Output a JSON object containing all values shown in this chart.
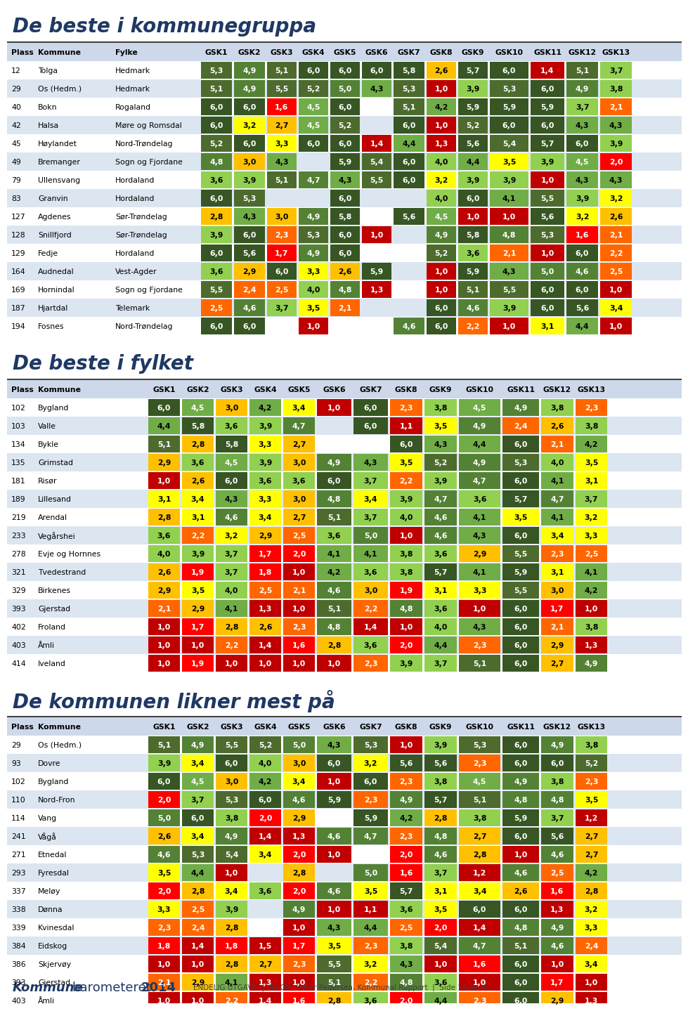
{
  "title1": "De beste i kommunegruppa",
  "title2": "De beste i fylket",
  "title3": "De kommunen likner mest på",
  "footer_right": "ENDELIG UTGAVE  |  Av Ole Petter Pedersen, Kommunal Rapport  |  Side 14 av 82",
  "table1": [
    [
      "12",
      "Tolga",
      "Hedmark",
      "5,3",
      "4,9",
      "5,1",
      "6,0",
      "6,0",
      "6,0",
      "5,8",
      "2,6",
      "5,7",
      "6,0",
      "1,4",
      "5,1",
      "3,7"
    ],
    [
      "29",
      "Os (Hedm.)",
      "Hedmark",
      "5,1",
      "4,9",
      "5,5",
      "5,2",
      "5,0",
      "4,3",
      "5,3",
      "1,0",
      "3,9",
      "5,3",
      "6,0",
      "4,9",
      "3,8"
    ],
    [
      "40",
      "Bokn",
      "Rogaland",
      "6,0",
      "6,0",
      "1,6",
      "4,5",
      "6,0",
      "",
      "5,1",
      "4,2",
      "5,9",
      "5,9",
      "5,9",
      "3,7",
      "2,1"
    ],
    [
      "42",
      "Halsa",
      "Møre og Romsdal",
      "6,0",
      "3,2",
      "2,7",
      "4,5",
      "5,2",
      "",
      "6,0",
      "1,0",
      "5,2",
      "6,0",
      "6,0",
      "4,3",
      "4,3"
    ],
    [
      "45",
      "Høylandet",
      "Nord-Trøndelag",
      "5,2",
      "6,0",
      "3,3",
      "6,0",
      "6,0",
      "1,4",
      "4,4",
      "1,3",
      "5,6",
      "5,4",
      "5,7",
      "6,0",
      "3,9"
    ],
    [
      "49",
      "Bremanger",
      "Sogn og Fjordane",
      "4,8",
      "3,0",
      "4,3",
      "",
      "5,9",
      "5,4",
      "6,0",
      "4,0",
      "4,4",
      "3,5",
      "3,9",
      "4,5",
      "2,0"
    ],
    [
      "79",
      "Ullensvang",
      "Hordaland",
      "3,6",
      "3,9",
      "5,1",
      "4,7",
      "4,3",
      "5,5",
      "6,0",
      "3,2",
      "3,9",
      "3,9",
      "1,0",
      "4,3",
      "4,3"
    ],
    [
      "83",
      "Granvin",
      "Hordaland",
      "6,0",
      "5,3",
      "",
      "",
      "6,0",
      "",
      "",
      "4,0",
      "6,0",
      "4,1",
      "5,5",
      "3,9",
      "3,2"
    ],
    [
      "127",
      "Agdenes",
      "Sør-Trøndelag",
      "2,8",
      "4,3",
      "3,0",
      "4,9",
      "5,8",
      "",
      "5,6",
      "4,5",
      "1,0",
      "1,0",
      "5,6",
      "3,2",
      "2,6"
    ],
    [
      "128",
      "Snillfjord",
      "Sør-Trøndelag",
      "3,9",
      "6,0",
      "2,3",
      "5,3",
      "6,0",
      "1,0",
      "",
      "4,9",
      "5,8",
      "4,8",
      "5,3",
      "1,6",
      "2,1"
    ],
    [
      "129",
      "Fedje",
      "Hordaland",
      "6,0",
      "5,6",
      "1,7",
      "4,9",
      "6,0",
      "",
      "",
      "5,2",
      "3,6",
      "2,1",
      "1,0",
      "6,0",
      "2,2"
    ],
    [
      "164",
      "Audnedal",
      "Vest-Agder",
      "3,6",
      "2,9",
      "6,0",
      "3,3",
      "2,6",
      "5,9",
      "",
      "1,0",
      "5,9",
      "4,3",
      "5,0",
      "4,6",
      "2,5"
    ],
    [
      "169",
      "Hornindal",
      "Sogn og Fjordane",
      "5,5",
      "2,4",
      "2,5",
      "4,0",
      "4,8",
      "1,3",
      "",
      "1,0",
      "5,1",
      "5,5",
      "6,0",
      "6,0",
      "1,0"
    ],
    [
      "187",
      "Hjartdal",
      "Telemark",
      "2,5",
      "4,6",
      "3,7",
      "3,5",
      "2,1",
      "",
      "",
      "6,0",
      "4,6",
      "3,9",
      "6,0",
      "5,6",
      "3,4"
    ],
    [
      "194",
      "Fosnes",
      "Nord-Trøndelag",
      "6,0",
      "6,0",
      "",
      "1,0",
      "",
      "",
      "4,6",
      "6,0",
      "2,2",
      "1,0",
      "3,1",
      "4,4",
      "1,0"
    ]
  ],
  "table2": [
    [
      "102",
      "Bygland",
      "6,0",
      "4,5",
      "3,0",
      "4,2",
      "3,4",
      "1,0",
      "6,0",
      "2,3",
      "3,8",
      "4,5",
      "4,9",
      "3,8",
      "2,3"
    ],
    [
      "103",
      "Valle",
      "4,4",
      "5,8",
      "3,6",
      "3,9",
      "4,7",
      "",
      "6,0",
      "1,1",
      "3,5",
      "4,9",
      "2,4",
      "2,6",
      "3,8"
    ],
    [
      "134",
      "Bykle",
      "5,1",
      "2,8",
      "5,8",
      "3,3",
      "2,7",
      "",
      "",
      "6,0",
      "4,3",
      "4,4",
      "6,0",
      "2,1",
      "4,2"
    ],
    [
      "135",
      "Grimstad",
      "2,9",
      "3,6",
      "4,5",
      "3,9",
      "3,0",
      "4,9",
      "4,3",
      "3,5",
      "5,2",
      "4,9",
      "5,3",
      "4,0",
      "3,5"
    ],
    [
      "181",
      "Risør",
      "1,0",
      "2,6",
      "6,0",
      "3,6",
      "3,6",
      "6,0",
      "3,7",
      "2,2",
      "3,9",
      "4,7",
      "6,0",
      "4,1",
      "3,1"
    ],
    [
      "189",
      "Lillesand",
      "3,1",
      "3,4",
      "4,3",
      "3,3",
      "3,0",
      "4,8",
      "3,4",
      "3,9",
      "4,7",
      "3,6",
      "5,7",
      "4,7",
      "3,7"
    ],
    [
      "219",
      "Arendal",
      "2,8",
      "3,1",
      "4,6",
      "3,4",
      "2,7",
      "5,1",
      "3,7",
      "4,0",
      "4,6",
      "4,1",
      "3,5",
      "4,1",
      "3,2"
    ],
    [
      "233",
      "Vegårshei",
      "3,6",
      "2,2",
      "3,2",
      "2,9",
      "2,5",
      "3,6",
      "5,0",
      "1,0",
      "4,6",
      "4,3",
      "6,0",
      "3,4",
      "3,3"
    ],
    [
      "278",
      "Evje og Hornnes",
      "4,0",
      "3,9",
      "3,7",
      "1,7",
      "2,0",
      "4,1",
      "4,1",
      "3,8",
      "3,6",
      "2,9",
      "5,5",
      "2,3",
      "2,5"
    ],
    [
      "321",
      "Tvedestrand",
      "2,6",
      "1,9",
      "3,7",
      "1,8",
      "1,0",
      "4,2",
      "3,6",
      "3,8",
      "5,7",
      "4,1",
      "5,9",
      "3,1",
      "4,1"
    ],
    [
      "329",
      "Birkenes",
      "2,9",
      "3,5",
      "4,0",
      "2,5",
      "2,1",
      "4,6",
      "3,0",
      "1,9",
      "3,1",
      "3,3",
      "5,5",
      "3,0",
      "4,2"
    ],
    [
      "393",
      "Gjerstad",
      "2,1",
      "2,9",
      "4,1",
      "1,3",
      "1,0",
      "5,1",
      "2,2",
      "4,8",
      "3,6",
      "1,0",
      "6,0",
      "1,7",
      "1,0"
    ],
    [
      "402",
      "Froland",
      "1,0",
      "1,7",
      "2,8",
      "2,6",
      "2,3",
      "4,8",
      "1,4",
      "1,0",
      "4,0",
      "4,3",
      "6,0",
      "2,1",
      "3,8"
    ],
    [
      "403",
      "Åmli",
      "1,0",
      "1,0",
      "2,2",
      "1,4",
      "1,6",
      "2,8",
      "3,6",
      "2,0",
      "4,4",
      "2,3",
      "6,0",
      "2,9",
      "1,3"
    ],
    [
      "414",
      "Iveland",
      "1,0",
      "1,9",
      "1,0",
      "1,0",
      "1,0",
      "1,0",
      "2,3",
      "3,9",
      "3,7",
      "5,1",
      "6,0",
      "2,7",
      "4,9"
    ]
  ],
  "table3": [
    [
      "29",
      "Os (Hedm.)",
      "5,1",
      "4,9",
      "5,5",
      "5,2",
      "5,0",
      "4,3",
      "5,3",
      "1,0",
      "3,9",
      "5,3",
      "6,0",
      "4,9",
      "3,8"
    ],
    [
      "93",
      "Dovre",
      "3,9",
      "3,4",
      "6,0",
      "4,0",
      "3,0",
      "6,0",
      "3,2",
      "5,6",
      "5,6",
      "2,3",
      "6,0",
      "6,0",
      "5,2"
    ],
    [
      "102",
      "Bygland",
      "6,0",
      "4,5",
      "3,0",
      "4,2",
      "3,4",
      "1,0",
      "6,0",
      "2,3",
      "3,8",
      "4,5",
      "4,9",
      "3,8",
      "2,3"
    ],
    [
      "110",
      "Nord-Fron",
      "2,0",
      "3,7",
      "5,3",
      "6,0",
      "4,6",
      "5,9",
      "2,3",
      "4,9",
      "5,7",
      "5,1",
      "4,8",
      "4,8",
      "3,5"
    ],
    [
      "114",
      "Vang",
      "5,0",
      "6,0",
      "3,8",
      "2,0",
      "2,9",
      "",
      "5,9",
      "4,2",
      "2,8",
      "3,8",
      "5,9",
      "3,7",
      "1,2"
    ],
    [
      "241",
      "Vågå",
      "2,6",
      "3,4",
      "4,9",
      "1,4",
      "1,3",
      "4,6",
      "4,7",
      "2,3",
      "4,8",
      "2,7",
      "6,0",
      "5,6",
      "2,7"
    ],
    [
      "271",
      "Etnedal",
      "4,6",
      "5,3",
      "5,4",
      "3,4",
      "2,0",
      "1,0",
      "",
      "2,0",
      "4,6",
      "2,8",
      "1,0",
      "4,6",
      "2,7"
    ],
    [
      "293",
      "Fyresdal",
      "3,5",
      "4,4",
      "1,0",
      "",
      "2,8",
      "",
      "5,0",
      "1,6",
      "3,7",
      "1,2",
      "4,6",
      "2,5",
      "4,2"
    ],
    [
      "337",
      "Meløy",
      "2,0",
      "2,8",
      "3,4",
      "3,6",
      "2,0",
      "4,6",
      "3,5",
      "5,7",
      "3,1",
      "3,4",
      "2,6",
      "1,6",
      "2,8"
    ],
    [
      "338",
      "Dønna",
      "3,3",
      "2,5",
      "3,9",
      "",
      "4,9",
      "1,0",
      "1,1",
      "3,6",
      "3,5",
      "6,0",
      "6,0",
      "1,3",
      "3,2"
    ],
    [
      "339",
      "Kvinesdal",
      "2,3",
      "2,4",
      "2,8",
      "",
      "1,0",
      "4,3",
      "4,4",
      "2,5",
      "2,0",
      "1,4",
      "4,8",
      "4,9",
      "3,3"
    ],
    [
      "384",
      "Eidskog",
      "1,8",
      "1,4",
      "1,8",
      "1,5",
      "1,7",
      "3,5",
      "2,3",
      "3,8",
      "5,4",
      "4,7",
      "5,1",
      "4,6",
      "2,4"
    ],
    [
      "386",
      "Skjervøy",
      "1,0",
      "1,0",
      "2,8",
      "2,7",
      "2,3",
      "5,5",
      "3,2",
      "4,3",
      "1,0",
      "1,6",
      "6,0",
      "1,0",
      "3,4"
    ],
    [
      "393",
      "Gjerstad",
      "2,1",
      "2,9",
      "4,1",
      "1,3",
      "1,0",
      "5,1",
      "2,2",
      "4,8",
      "3,6",
      "1,0",
      "6,0",
      "1,7",
      "1,0"
    ],
    [
      "403",
      "Åmli",
      "1,0",
      "1,0",
      "2,2",
      "1,4",
      "1,6",
      "2,8",
      "3,6",
      "2,0",
      "4,4",
      "2,3",
      "6,0",
      "2,9",
      "1,3"
    ]
  ]
}
